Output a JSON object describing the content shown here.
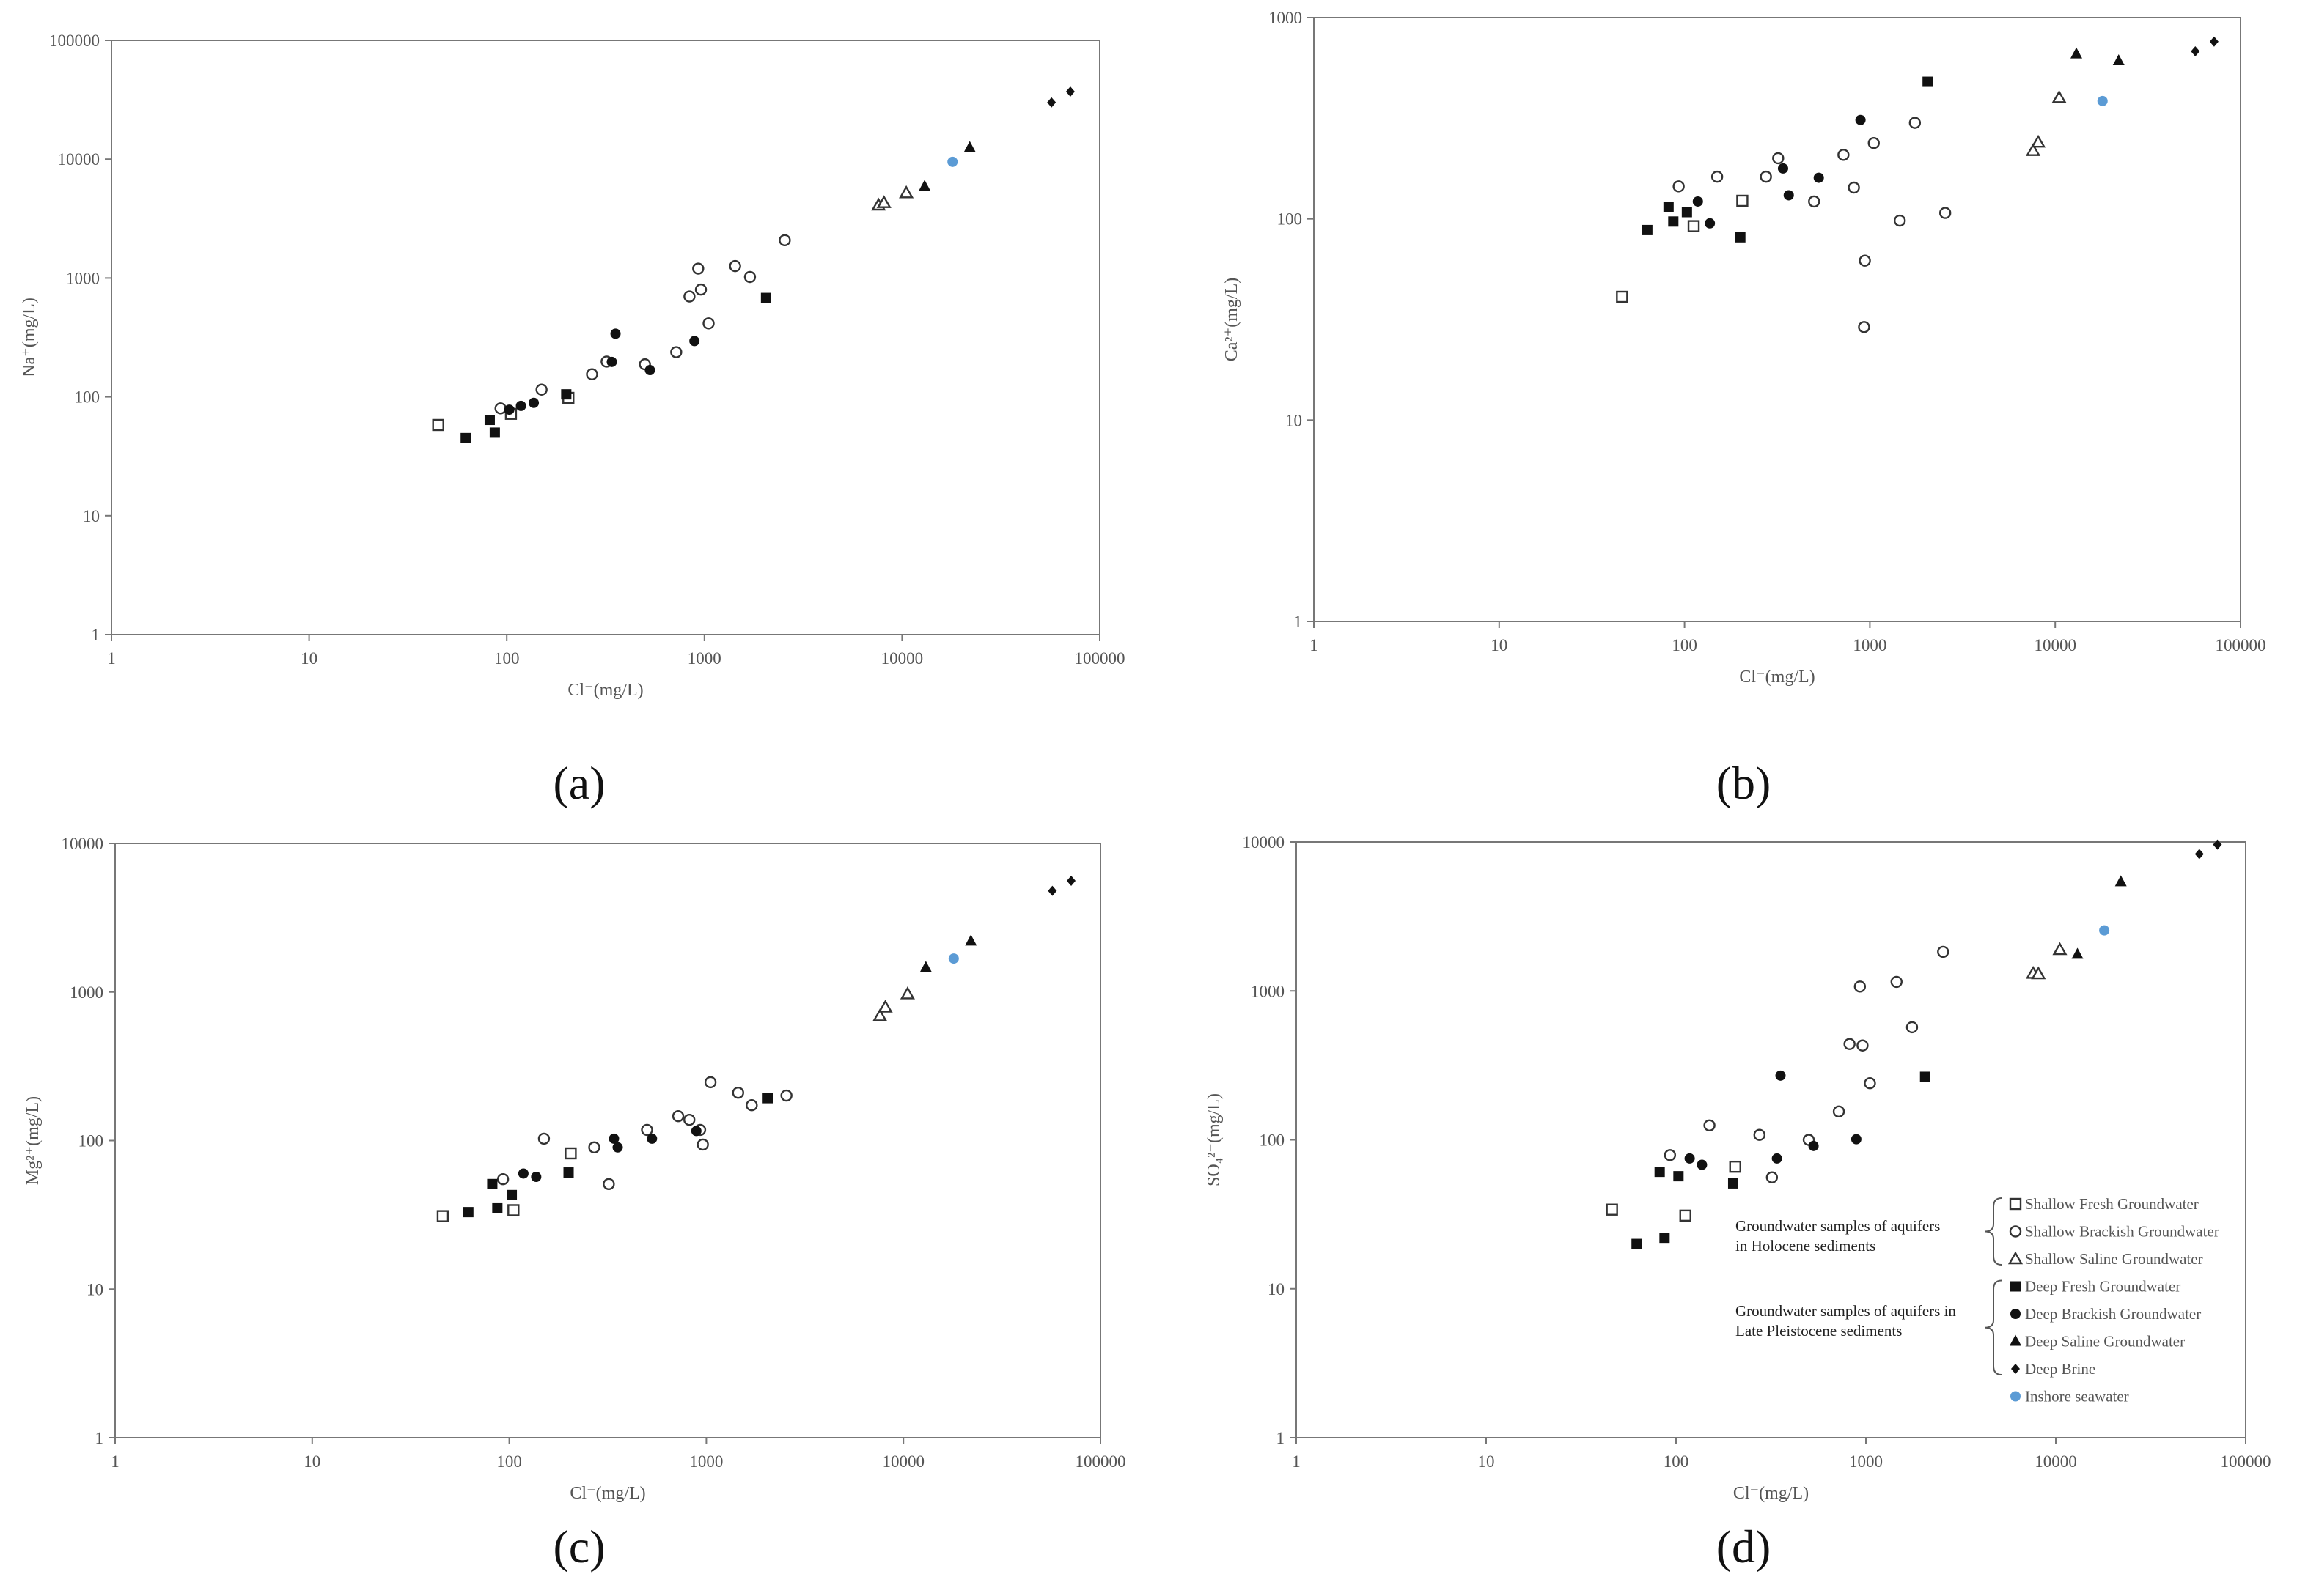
{
  "figure": {
    "legend": {
      "groups": [
        {
          "label_lines": [
            "Groundwater  samples of aquifers",
            "in Holocene sediments"
          ],
          "series": [
            "sf",
            "sb",
            "ss"
          ]
        },
        {
          "label_lines": [
            "Groundwater samples of aquifers in",
            "Late Pleistocene sediments"
          ],
          "series": [
            "df",
            "db",
            "ds",
            "dbr"
          ]
        }
      ],
      "entries": [
        {
          "id": "sf",
          "label": "Shallow Fresh Groundwater"
        },
        {
          "id": "sb",
          "label": "Shallow Brackish Groundwater"
        },
        {
          "id": "ss",
          "label": "Shallow Saline Groundwater"
        },
        {
          "id": "df",
          "label": "Deep Fresh Groundwater"
        },
        {
          "id": "db",
          "label": "Deep Brackish Groundwater"
        },
        {
          "id": "ds",
          "label": "Deep Saline Groundwater"
        },
        {
          "id": "dbr",
          "label": "Deep Brine"
        },
        {
          "id": "sw",
          "label": "Inshore seawater"
        }
      ]
    }
  },
  "chart_data": [
    {
      "panel": "(a)",
      "type": "scatter",
      "xlabel": "Cl⁻(mg/L)",
      "ylabel": "Na⁺(mg/L)",
      "xscale": "log",
      "yscale": "log",
      "xlim": [
        1,
        100000
      ],
      "ylim": [
        1,
        100000
      ],
      "xticks": [
        "1",
        "10",
        "100",
        "1000",
        "10000",
        "100000"
      ],
      "yticks": [
        "1",
        "10",
        "100",
        "1000",
        "10000",
        "100000"
      ],
      "series": [
        {
          "id": "sf",
          "name": "Shallow Fresh Groundwater",
          "marker": "square-open",
          "color": "#333333",
          "points": [
            [
              45,
              58
            ],
            [
              105,
              72
            ],
            [
              205,
              98
            ]
          ]
        },
        {
          "id": "sb",
          "name": "Shallow Brackish Groundwater",
          "marker": "circle-open",
          "color": "#333333",
          "points": [
            [
              93,
              80
            ],
            [
              150,
              115
            ],
            [
              270,
              155
            ],
            [
              320,
              198
            ],
            [
              500,
              188
            ],
            [
              720,
              238
            ],
            [
              840,
              700
            ],
            [
              930,
              1200
            ],
            [
              960,
              800
            ],
            [
              1050,
              415
            ],
            [
              1430,
              1260
            ],
            [
              1700,
              1020
            ],
            [
              2550,
              2080
            ]
          ]
        },
        {
          "id": "ss",
          "name": "Shallow Saline Groundwater",
          "marker": "triangle-open",
          "color": "#333333",
          "points": [
            [
              7600,
              4100
            ],
            [
              8100,
              4300
            ],
            [
              10500,
              5200
            ]
          ]
        },
        {
          "id": "df",
          "name": "Deep Fresh Groundwater",
          "marker": "square-filled",
          "color": "#111111",
          "points": [
            [
              62,
              45
            ],
            [
              82,
              64
            ],
            [
              87,
              50
            ],
            [
              200,
              105
            ],
            [
              2050,
              680
            ]
          ]
        },
        {
          "id": "db",
          "name": "Deep Brackish Groundwater",
          "marker": "circle-filled",
          "color": "#111111",
          "points": [
            [
              103,
              78
            ],
            [
              118,
              84
            ],
            [
              137,
              89
            ],
            [
              340,
              197
            ],
            [
              355,
              340
            ],
            [
              530,
              168
            ],
            [
              890,
              295
            ]
          ]
        },
        {
          "id": "ds",
          "name": "Deep Saline Groundwater",
          "marker": "triangle-filled",
          "color": "#111111",
          "points": [
            [
              13000,
              5900
            ],
            [
              22000,
              12500
            ]
          ]
        },
        {
          "id": "dbr",
          "name": "Deep Brine",
          "marker": "diamond-filled",
          "color": "#111111",
          "points": [
            [
              57000,
              30000
            ],
            [
              71000,
              37000
            ]
          ]
        },
        {
          "id": "sw",
          "name": "Inshore seawater",
          "marker": "circle-filled",
          "color": "#5b9bd5",
          "points": [
            [
              18000,
              9500
            ]
          ]
        }
      ]
    },
    {
      "panel": "(b)",
      "type": "scatter",
      "xlabel": "Cl⁻(mg/L)",
      "ylabel": "Ca²⁺(mg/L)",
      "xscale": "log",
      "yscale": "log",
      "xlim": [
        1,
        100000
      ],
      "ylim": [
        1,
        1000
      ],
      "xticks": [
        "1",
        "10",
        "100",
        "1000",
        "10000",
        "100000"
      ],
      "yticks": [
        "1",
        "10",
        "100",
        "1000"
      ],
      "series": [
        {
          "id": "sf",
          "name": "Shallow Fresh Groundwater",
          "marker": "square-open",
          "color": "#333333",
          "points": [
            [
              46,
              41
            ],
            [
              112,
              92
            ],
            [
              205,
              123
            ]
          ]
        },
        {
          "id": "sb",
          "name": "Shallow Brackish Groundwater",
          "marker": "circle-open",
          "color": "#333333",
          "points": [
            [
              93,
              145
            ],
            [
              150,
              162
            ],
            [
              275,
              162
            ],
            [
              320,
              200
            ],
            [
              500,
              122
            ],
            [
              720,
              208
            ],
            [
              820,
              143
            ],
            [
              940,
              62
            ],
            [
              930,
              29
            ],
            [
              1050,
              238
            ],
            [
              1450,
              98
            ],
            [
              1750,
              300
            ],
            [
              2550,
              107
            ]
          ]
        },
        {
          "id": "ss",
          "name": "Shallow Saline Groundwater",
          "marker": "triangle-open",
          "color": "#333333",
          "points": [
            [
              7600,
              218
            ],
            [
              8100,
              240
            ],
            [
              10500,
              400
            ]
          ]
        },
        {
          "id": "df",
          "name": "Deep Fresh Groundwater",
          "marker": "square-filled",
          "color": "#111111",
          "points": [
            [
              63,
              88
            ],
            [
              82,
              115
            ],
            [
              87,
              97
            ],
            [
              103,
              108
            ],
            [
              200,
              81
            ],
            [
              2050,
              480
            ]
          ]
        },
        {
          "id": "db",
          "name": "Deep Brackish Groundwater",
          "marker": "circle-filled",
          "color": "#111111",
          "points": [
            [
              118,
              122
            ],
            [
              137,
              95
            ],
            [
              340,
              178
            ],
            [
              365,
              131
            ],
            [
              530,
              160
            ],
            [
              890,
              310
            ]
          ]
        },
        {
          "id": "ds",
          "name": "Deep Saline Groundwater",
          "marker": "triangle-filled",
          "color": "#111111",
          "points": [
            [
              13000,
              660
            ],
            [
              22000,
              610
            ]
          ]
        },
        {
          "id": "dbr",
          "name": "Deep Brine",
          "marker": "diamond-filled",
          "color": "#111111",
          "points": [
            [
              57000,
              680
            ],
            [
              72000,
              760
            ]
          ]
        },
        {
          "id": "sw",
          "name": "Inshore seawater",
          "marker": "circle-filled",
          "color": "#5b9bd5",
          "points": [
            [
              18000,
              385
            ]
          ]
        }
      ]
    },
    {
      "panel": "(c)",
      "type": "scatter",
      "xlabel": "Cl⁻(mg/L)",
      "ylabel": "Mg²⁺(mg/L)",
      "xscale": "log",
      "yscale": "log",
      "xlim": [
        1,
        100000
      ],
      "ylim": [
        1,
        10000
      ],
      "xticks": [
        "1",
        "10",
        "100",
        "1000",
        "10000",
        "100000"
      ],
      "yticks": [
        "1",
        "10",
        "100",
        "1000",
        "10000"
      ],
      "series": [
        {
          "id": "sf",
          "name": "Shallow Fresh Groundwater",
          "marker": "square-open",
          "color": "#333333",
          "points": [
            [
              46,
              31
            ],
            [
              105,
              34
            ],
            [
              205,
              82
            ]
          ]
        },
        {
          "id": "sb",
          "name": "Shallow Brackish Groundwater",
          "marker": "circle-open",
          "color": "#333333",
          "points": [
            [
              93,
              55
            ],
            [
              150,
              103
            ],
            [
              270,
              90
            ],
            [
              320,
              51
            ],
            [
              500,
              118
            ],
            [
              720,
              146
            ],
            [
              820,
              138
            ],
            [
              930,
              118
            ],
            [
              960,
              94
            ],
            [
              1050,
              247
            ],
            [
              1450,
              210
            ],
            [
              1700,
              173
            ],
            [
              2550,
              201
            ]
          ]
        },
        {
          "id": "ss",
          "name": "Shallow Saline Groundwater",
          "marker": "triangle-open",
          "color": "#333333",
          "points": [
            [
              7600,
              690
            ],
            [
              8100,
              790
            ],
            [
              10500,
              970
            ]
          ]
        },
        {
          "id": "df",
          "name": "Deep Fresh Groundwater",
          "marker": "square-filled",
          "color": "#111111",
          "points": [
            [
              62,
              33
            ],
            [
              82,
              51
            ],
            [
              87,
              35
            ],
            [
              103,
              43
            ],
            [
              200,
              61
            ],
            [
              2050,
              193
            ]
          ]
        },
        {
          "id": "db",
          "name": "Deep Brackish Groundwater",
          "marker": "circle-filled",
          "color": "#111111",
          "points": [
            [
              118,
              60
            ],
            [
              137,
              57
            ],
            [
              340,
              103
            ],
            [
              355,
              90
            ],
            [
              530,
              103
            ],
            [
              890,
              116
            ]
          ]
        },
        {
          "id": "ds",
          "name": "Deep Saline Groundwater",
          "marker": "triangle-filled",
          "color": "#111111",
          "points": [
            [
              13000,
              1460
            ],
            [
              22000,
              2200
            ]
          ]
        },
        {
          "id": "dbr",
          "name": "Deep Brine",
          "marker": "diamond-filled",
          "color": "#111111",
          "points": [
            [
              57000,
              4800
            ],
            [
              71000,
              5600
            ]
          ]
        },
        {
          "id": "sw",
          "name": "Inshore seawater",
          "marker": "circle-filled",
          "color": "#5b9bd5",
          "points": [
            [
              18000,
              1680
            ]
          ]
        }
      ]
    },
    {
      "panel": "(d)",
      "type": "scatter",
      "xlabel": "Cl⁻(mg/L)",
      "ylabel": "SO₄²⁻(mg/L)",
      "xscale": "log",
      "yscale": "log",
      "xlim": [
        1,
        100000
      ],
      "ylim": [
        1,
        10000
      ],
      "xticks": [
        "1",
        "10",
        "100",
        "1000",
        "10000",
        "100000"
      ],
      "yticks": [
        "1",
        "10",
        "100",
        "1000",
        "10000"
      ],
      "series": [
        {
          "id": "sf",
          "name": "Shallow Fresh Groundwater",
          "marker": "square-open",
          "color": "#333333",
          "points": [
            [
              46,
              34
            ],
            [
              112,
              31
            ],
            [
              205,
              66
            ]
          ]
        },
        {
          "id": "sb",
          "name": "Shallow Brackish Groundwater",
          "marker": "circle-open",
          "color": "#333333",
          "points": [
            [
              93,
              79
            ],
            [
              150,
              125
            ],
            [
              275,
              108
            ],
            [
              320,
              56
            ],
            [
              500,
              100
            ],
            [
              720,
              155
            ],
            [
              820,
              440
            ],
            [
              930,
              1070
            ],
            [
              960,
              430
            ],
            [
              1050,
              240
            ],
            [
              1450,
              1150
            ],
            [
              1750,
              570
            ],
            [
              2550,
              1830
            ]
          ]
        },
        {
          "id": "ss",
          "name": "Shallow Saline Groundwater",
          "marker": "triangle-open",
          "color": "#333333",
          "points": [
            [
              7600,
              1310
            ],
            [
              8100,
              1300
            ],
            [
              10500,
              1890
            ]
          ]
        },
        {
          "id": "df",
          "name": "Deep Fresh Groundwater",
          "marker": "square-filled",
          "color": "#111111",
          "points": [
            [
              62,
              20
            ],
            [
              82,
              61
            ],
            [
              87,
              22
            ],
            [
              103,
              57
            ],
            [
              200,
              51
            ],
            [
              2050,
              265
            ]
          ]
        },
        {
          "id": "db",
          "name": "Deep Brackish Groundwater",
          "marker": "circle-filled",
          "color": "#111111",
          "points": [
            [
              118,
              75
            ],
            [
              137,
              68
            ],
            [
              340,
              75
            ],
            [
              355,
              270
            ],
            [
              530,
              91
            ],
            [
              890,
              101
            ]
          ]
        },
        {
          "id": "ds",
          "name": "Deep Saline Groundwater",
          "marker": "triangle-filled",
          "color": "#111111",
          "points": [
            [
              13000,
              1760
            ],
            [
              22000,
              5400
            ]
          ]
        },
        {
          "id": "dbr",
          "name": "Deep Brine",
          "marker": "diamond-filled",
          "color": "#111111",
          "points": [
            [
              57000,
              8300
            ],
            [
              71000,
              9600
            ]
          ]
        },
        {
          "id": "sw",
          "name": "Inshore seawater",
          "marker": "circle-filled",
          "color": "#5b9bd5",
          "points": [
            [
              18000,
              2550
            ]
          ]
        }
      ]
    }
  ]
}
